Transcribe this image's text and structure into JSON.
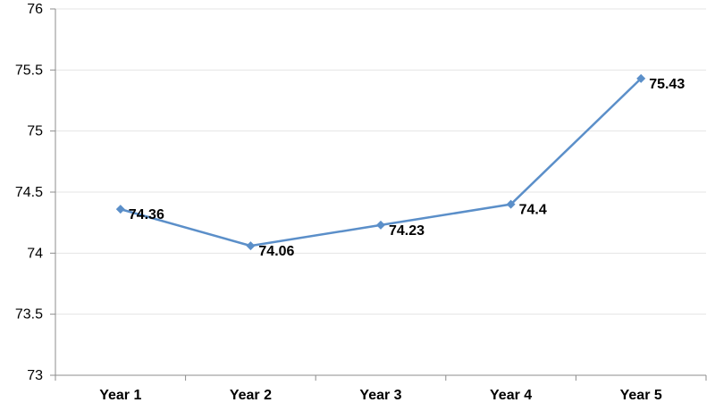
{
  "chart_data": {
    "type": "line",
    "categories": [
      "Year 1",
      "Year 2",
      "Year 3",
      "Year 4",
      "Year 5"
    ],
    "series": [
      {
        "values": [
          74.36,
          74.06,
          74.23,
          74.4,
          75.43
        ]
      }
    ],
    "data_labels": [
      "74.36",
      "74.06",
      "74.23",
      "74.4",
      "75.43"
    ],
    "title": "",
    "xlabel": "",
    "ylabel": "",
    "ylim": [
      73,
      76
    ],
    "y_ticks": [
      73,
      73.5,
      74,
      74.5,
      75,
      75.5,
      76
    ],
    "y_tick_labels": [
      "73",
      "73.5",
      "74",
      "74.5",
      "75",
      "75.5",
      "76"
    ],
    "grid": true,
    "legend": "none",
    "colors": {
      "series": "#5b8fc9",
      "marker": "#5b8fc9",
      "grid": "#e4e4e4",
      "axis": "#8c8c8c"
    },
    "marker": "diamond"
  }
}
